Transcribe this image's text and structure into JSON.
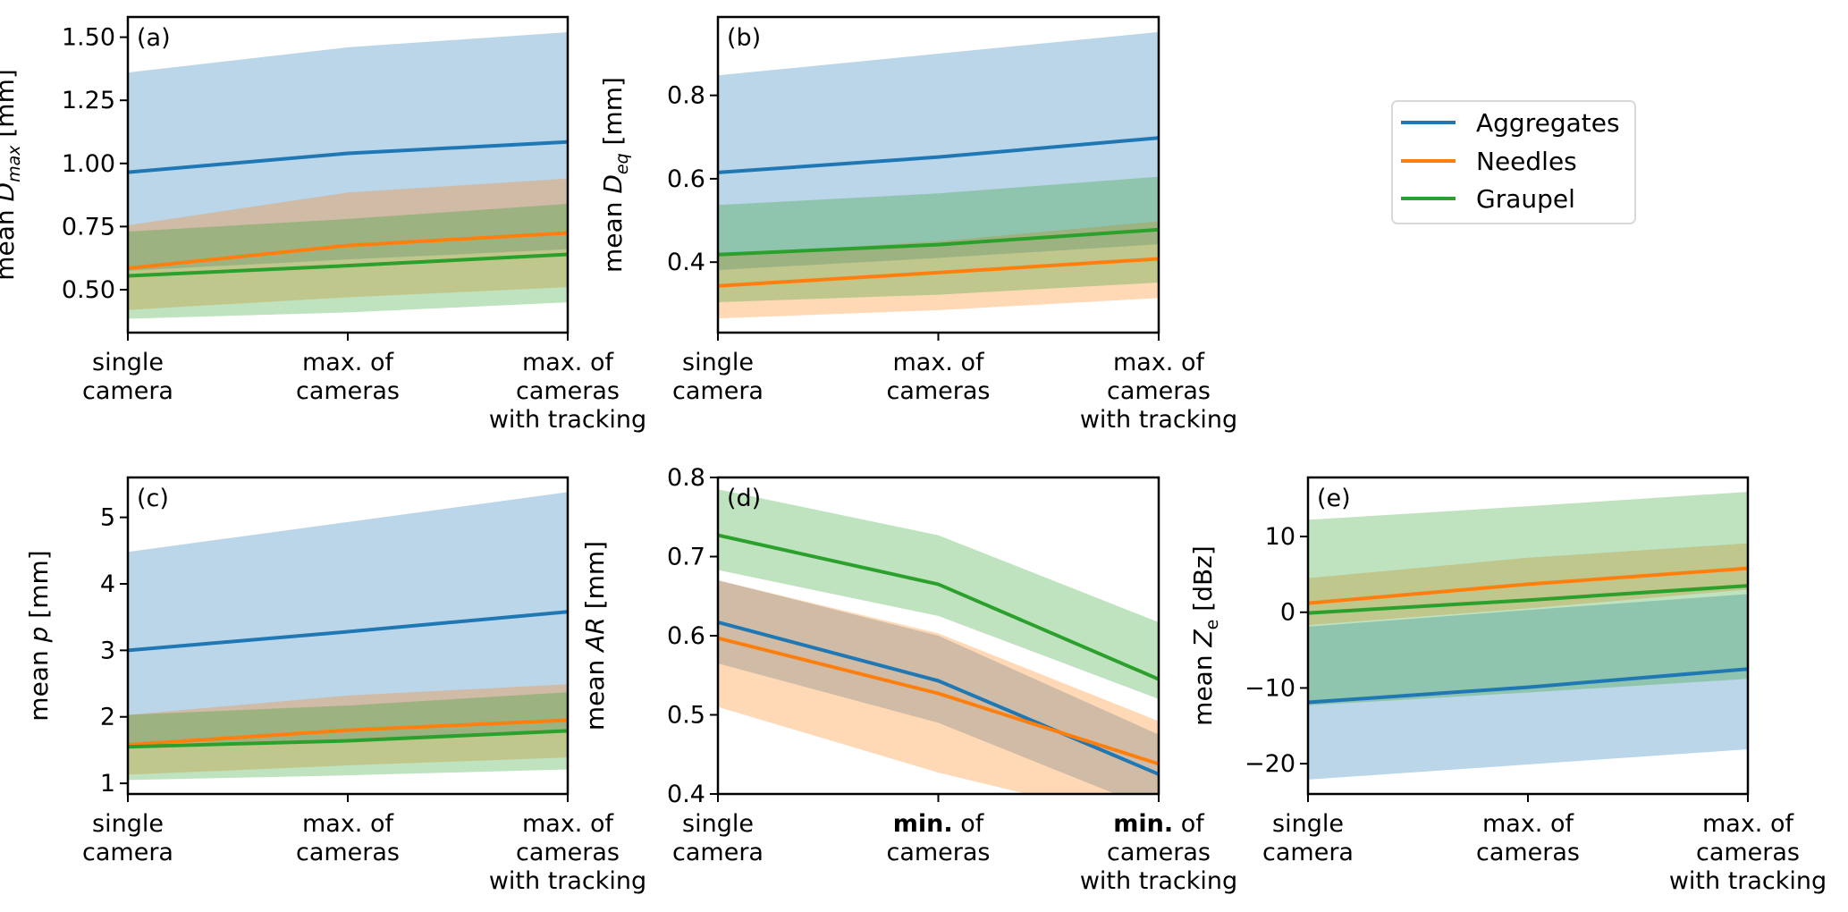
{
  "figure": {
    "legend_position": "upper-right (beside panel b)"
  },
  "chart_data": [
    {
      "type": "line",
      "panel": "(a)",
      "title": "",
      "ylabel_prefix": "mean ",
      "ylabel_symbol": "D",
      "ylabel_sub": "max",
      "ylabel_unit": " [mm]",
      "categories": [
        [
          "single",
          "camera"
        ],
        [
          "max. of",
          "cameras"
        ],
        [
          "max. of",
          "cameras",
          "with tracking"
        ]
      ],
      "bold_prefix": [],
      "ylim": [
        0.33,
        1.58
      ],
      "yticks": [
        0.5,
        0.75,
        1.0,
        1.25,
        1.5
      ],
      "ytick_labels": [
        "0.50",
        "0.75",
        "1.00",
        "1.25",
        "1.50"
      ],
      "series": [
        {
          "name": "Aggregates",
          "mean": [
            0.965,
            1.04,
            1.085
          ],
          "upper": [
            1.36,
            1.46,
            1.52
          ],
          "lower": [
            0.575,
            0.62,
            0.66
          ]
        },
        {
          "name": "Needles",
          "mean": [
            0.585,
            0.675,
            0.725
          ],
          "upper": [
            0.755,
            0.885,
            0.94
          ],
          "lower": [
            0.42,
            0.47,
            0.51
          ]
        },
        {
          "name": "Graupel",
          "mean": [
            0.555,
            0.595,
            0.64
          ],
          "upper": [
            0.73,
            0.78,
            0.84
          ],
          "lower": [
            0.385,
            0.41,
            0.45
          ]
        }
      ]
    },
    {
      "type": "line",
      "panel": "(b)",
      "title": "",
      "ylabel_prefix": "mean ",
      "ylabel_symbol": "D",
      "ylabel_sub": "eq",
      "ylabel_unit": " [mm]",
      "categories": [
        [
          "single",
          "camera"
        ],
        [
          "max. of",
          "cameras"
        ],
        [
          "max. of",
          "cameras",
          "with tracking"
        ]
      ],
      "bold_prefix": [],
      "ylim": [
        0.231,
        0.988
      ],
      "yticks": [
        0.4,
        0.6,
        0.8
      ],
      "ytick_labels": [
        "0.4",
        "0.6",
        "0.8"
      ],
      "series": [
        {
          "name": "Aggregates",
          "mean": [
            0.615,
            0.652,
            0.698
          ],
          "upper": [
            0.848,
            0.9,
            0.952
          ],
          "lower": [
            0.381,
            0.41,
            0.443
          ]
        },
        {
          "name": "Needles",
          "mean": [
            0.343,
            0.375,
            0.408
          ],
          "upper": [
            0.418,
            0.45,
            0.498
          ],
          "lower": [
            0.265,
            0.285,
            0.314
          ]
        },
        {
          "name": "Graupel",
          "mean": [
            0.418,
            0.442,
            0.478
          ],
          "upper": [
            0.537,
            0.565,
            0.605
          ],
          "lower": [
            0.304,
            0.322,
            0.351
          ]
        }
      ]
    },
    {
      "type": "line",
      "panel": "(c)",
      "title": "",
      "ylabel_prefix": "mean ",
      "ylabel_symbol": "p",
      "ylabel_sub": "",
      "ylabel_unit": " [mm]",
      "categories": [
        [
          "single",
          "camera"
        ],
        [
          "max. of",
          "cameras"
        ],
        [
          "max. of",
          "cameras",
          "with tracking"
        ]
      ],
      "bold_prefix": [],
      "ylim": [
        0.84,
        5.6
      ],
      "yticks": [
        1,
        2,
        3,
        4,
        5
      ],
      "ytick_labels": [
        "1",
        "2",
        "3",
        "4",
        "5"
      ],
      "series": [
        {
          "name": "Aggregates",
          "mean": [
            3.0,
            3.28,
            3.58
          ],
          "upper": [
            4.48,
            4.93,
            5.38
          ],
          "lower": [
            1.59,
            1.66,
            1.78
          ]
        },
        {
          "name": "Needles",
          "mean": [
            1.58,
            1.8,
            1.95
          ],
          "upper": [
            2.03,
            2.32,
            2.49
          ],
          "lower": [
            1.13,
            1.27,
            1.39
          ]
        },
        {
          "name": "Graupel",
          "mean": [
            1.55,
            1.64,
            1.79
          ],
          "upper": [
            2.03,
            2.17,
            2.37
          ],
          "lower": [
            1.05,
            1.12,
            1.21
          ]
        }
      ]
    },
    {
      "type": "line",
      "panel": "(d)",
      "title": "",
      "ylabel_prefix": "mean ",
      "ylabel_symbol": "AR",
      "ylabel_sub": "",
      "ylabel_unit": " [mm]",
      "categories": [
        [
          "single",
          "camera"
        ],
        [
          "min.",
          "cameras"
        ],
        [
          "min.",
          "cameras",
          "with tracking"
        ]
      ],
      "bold_prefix": [
        false,
        true,
        true
      ],
      "ylim": [
        0.4,
        0.8
      ],
      "yticks": [
        0.4,
        0.5,
        0.6,
        0.7,
        0.8
      ],
      "ytick_labels": [
        "0.4",
        "0.5",
        "0.6",
        "0.7",
        "0.8"
      ],
      "series": [
        {
          "name": "Aggregates",
          "mean": [
            0.617,
            0.543,
            0.425
          ],
          "upper": [
            0.67,
            0.6,
            0.475
          ],
          "lower": [
            0.565,
            0.49,
            0.378
          ]
        },
        {
          "name": "Needles",
          "mean": [
            0.597,
            0.527,
            0.438
          ],
          "upper": [
            0.67,
            0.603,
            0.492
          ],
          "lower": [
            0.51,
            0.427,
            0.36
          ]
        },
        {
          "name": "Graupel",
          "mean": [
            0.727,
            0.665,
            0.545
          ],
          "upper": [
            0.785,
            0.727,
            0.617
          ],
          "lower": [
            0.683,
            0.625,
            0.52
          ]
        }
      ]
    },
    {
      "type": "line",
      "panel": "(e)",
      "title": "",
      "ylabel_prefix": "mean ",
      "ylabel_symbol": "Z",
      "ylabel_sub": "e",
      "ylabel_unit": " [dBz]",
      "categories": [
        [
          "single",
          "camera"
        ],
        [
          "max. of",
          "cameras"
        ],
        [
          "max. of",
          "cameras",
          "with tracking"
        ]
      ],
      "bold_prefix": [],
      "ylim": [
        -24.0,
        17.8
      ],
      "yticks": [
        -20,
        -10,
        0,
        10
      ],
      "ytick_labels": [
        "−20",
        "−10",
        "0",
        "10"
      ],
      "series": [
        {
          "name": "Aggregates",
          "mean": [
            -11.9,
            -9.9,
            -7.5
          ],
          "upper": [
            -1.9,
            0.3,
            2.4
          ],
          "lower": [
            -22.1,
            -20.1,
            -18.1
          ]
        },
        {
          "name": "Needles",
          "mean": [
            1.2,
            3.7,
            5.8
          ],
          "upper": [
            4.5,
            7.2,
            9.1
          ],
          "lower": [
            -1.7,
            0.5,
            3.0
          ]
        },
        {
          "name": "Graupel",
          "mean": [
            -0.1,
            1.6,
            3.5
          ],
          "upper": [
            12.2,
            14.0,
            15.9
          ],
          "lower": [
            -12.3,
            -10.6,
            -8.8
          ]
        }
      ]
    }
  ],
  "legend": {
    "entries": [
      {
        "name": "Aggregates",
        "color": "#1f77b4"
      },
      {
        "name": "Needles",
        "color": "#ff7f0e"
      },
      {
        "name": "Graupel",
        "color": "#2ca02c"
      }
    ]
  },
  "colors": {
    "Aggregates": "#1f77b4",
    "Needles": "#ff7f0e",
    "Graupel": "#2ca02c"
  },
  "category_suffix_of": " of"
}
